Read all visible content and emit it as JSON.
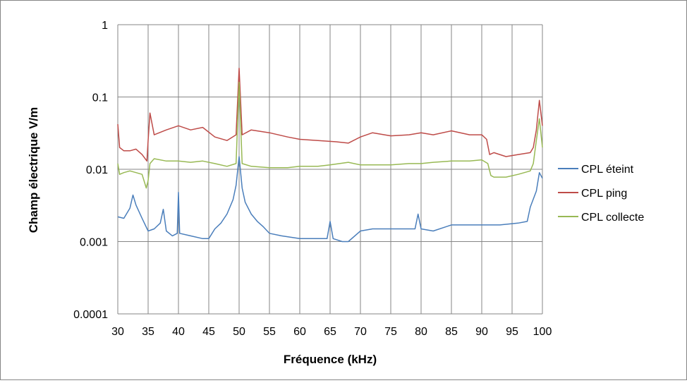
{
  "chart_data": {
    "type": "line",
    "title": "",
    "xlabel": "Fréquence (kHz)",
    "ylabel": "Champ électrique V/m",
    "xlim": [
      30,
      100
    ],
    "ylim": [
      0.0001,
      1
    ],
    "y_scale": "log",
    "x_ticks": [
      "30",
      "35",
      "40",
      "45",
      "50",
      "55",
      "60",
      "65",
      "70",
      "75",
      "80",
      "85",
      "90",
      "95",
      "100"
    ],
    "y_ticks": [
      "1",
      "0.1",
      "0.01",
      "0.001",
      "0.0001"
    ],
    "grid": "vertical and horizontal gridlines",
    "legend_position": "right",
    "series": [
      {
        "name": "CPL éteint",
        "color": "#4a7ebb",
        "points": [
          [
            30,
            0.0022
          ],
          [
            31,
            0.0021
          ],
          [
            32,
            0.0029
          ],
          [
            32.5,
            0.0044
          ],
          [
            33,
            0.0032
          ],
          [
            34,
            0.0021
          ],
          [
            35,
            0.0014
          ],
          [
            36,
            0.0015
          ],
          [
            37,
            0.0018
          ],
          [
            37.5,
            0.0028
          ],
          [
            38,
            0.0014
          ],
          [
            39,
            0.0012
          ],
          [
            39.8,
            0.0013
          ],
          [
            40,
            0.0048
          ],
          [
            40.2,
            0.0013
          ],
          [
            42,
            0.0012
          ],
          [
            44,
            0.0011
          ],
          [
            45,
            0.0011
          ],
          [
            46,
            0.0015
          ],
          [
            47,
            0.0018
          ],
          [
            48,
            0.0024
          ],
          [
            49,
            0.0038
          ],
          [
            49.5,
            0.006
          ],
          [
            50,
            0.015
          ],
          [
            50.5,
            0.0055
          ],
          [
            51,
            0.0035
          ],
          [
            52,
            0.0024
          ],
          [
            53,
            0.0019
          ],
          [
            54,
            0.0016
          ],
          [
            55,
            0.0013
          ],
          [
            57,
            0.0012
          ],
          [
            60,
            0.0011
          ],
          [
            63,
            0.0011
          ],
          [
            64.5,
            0.0011
          ],
          [
            65,
            0.0019
          ],
          [
            65.5,
            0.0011
          ],
          [
            67,
            0.001
          ],
          [
            68,
            0.001
          ],
          [
            70,
            0.0014
          ],
          [
            72,
            0.0015
          ],
          [
            75,
            0.0015
          ],
          [
            78,
            0.0015
          ],
          [
            79,
            0.0015
          ],
          [
            79.5,
            0.0024
          ],
          [
            80,
            0.0015
          ],
          [
            82,
            0.0014
          ],
          [
            85,
            0.0017
          ],
          [
            88,
            0.0017
          ],
          [
            90,
            0.0017
          ],
          [
            93,
            0.0017
          ],
          [
            96,
            0.0018
          ],
          [
            97.5,
            0.0019
          ],
          [
            98,
            0.003
          ],
          [
            99,
            0.005
          ],
          [
            99.5,
            0.009
          ],
          [
            100,
            0.0075
          ]
        ]
      },
      {
        "name": "CPL ping",
        "color": "#be4b48",
        "points": [
          [
            30,
            0.042
          ],
          [
            30.3,
            0.02
          ],
          [
            31,
            0.018
          ],
          [
            32,
            0.018
          ],
          [
            33,
            0.019
          ],
          [
            34,
            0.016
          ],
          [
            34.8,
            0.013
          ],
          [
            35,
            0.025
          ],
          [
            35.3,
            0.06
          ],
          [
            36,
            0.03
          ],
          [
            38,
            0.035
          ],
          [
            40,
            0.04
          ],
          [
            42,
            0.035
          ],
          [
            44,
            0.038
          ],
          [
            46,
            0.028
          ],
          [
            48,
            0.025
          ],
          [
            49.5,
            0.03
          ],
          [
            50,
            0.25
          ],
          [
            50.5,
            0.03
          ],
          [
            52,
            0.035
          ],
          [
            55,
            0.032
          ],
          [
            58,
            0.028
          ],
          [
            60,
            0.026
          ],
          [
            63,
            0.025
          ],
          [
            66,
            0.024
          ],
          [
            68,
            0.023
          ],
          [
            70,
            0.028
          ],
          [
            72,
            0.032
          ],
          [
            75,
            0.029
          ],
          [
            78,
            0.03
          ],
          [
            80,
            0.032
          ],
          [
            82,
            0.03
          ],
          [
            85,
            0.034
          ],
          [
            88,
            0.03
          ],
          [
            90,
            0.03
          ],
          [
            90.8,
            0.026
          ],
          [
            91.3,
            0.016
          ],
          [
            92,
            0.017
          ],
          [
            94,
            0.015
          ],
          [
            96,
            0.016
          ],
          [
            98,
            0.017
          ],
          [
            98.5,
            0.02
          ],
          [
            99,
            0.035
          ],
          [
            99.5,
            0.09
          ],
          [
            100,
            0.04
          ]
        ]
      },
      {
        "name": "CPL collecte",
        "color": "#98b954",
        "points": [
          [
            30,
            0.012
          ],
          [
            30.3,
            0.0085
          ],
          [
            31,
            0.009
          ],
          [
            32,
            0.0095
          ],
          [
            33,
            0.009
          ],
          [
            34,
            0.0085
          ],
          [
            34.7,
            0.0055
          ],
          [
            35,
            0.007
          ],
          [
            35.3,
            0.012
          ],
          [
            36,
            0.014
          ],
          [
            38,
            0.013
          ],
          [
            40,
            0.013
          ],
          [
            42,
            0.0125
          ],
          [
            44,
            0.013
          ],
          [
            46,
            0.012
          ],
          [
            48,
            0.011
          ],
          [
            49.5,
            0.012
          ],
          [
            50,
            0.16
          ],
          [
            50.5,
            0.012
          ],
          [
            52,
            0.011
          ],
          [
            55,
            0.0105
          ],
          [
            58,
            0.0105
          ],
          [
            60,
            0.011
          ],
          [
            63,
            0.011
          ],
          [
            65,
            0.0115
          ],
          [
            68,
            0.0125
          ],
          [
            70,
            0.0115
          ],
          [
            72,
            0.0115
          ],
          [
            75,
            0.0115
          ],
          [
            78,
            0.012
          ],
          [
            80,
            0.012
          ],
          [
            82,
            0.0125
          ],
          [
            85,
            0.013
          ],
          [
            88,
            0.013
          ],
          [
            90,
            0.0135
          ],
          [
            91,
            0.012
          ],
          [
            91.5,
            0.0082
          ],
          [
            92,
            0.0078
          ],
          [
            94,
            0.0078
          ],
          [
            96,
            0.0085
          ],
          [
            98,
            0.0095
          ],
          [
            98.5,
            0.012
          ],
          [
            99,
            0.025
          ],
          [
            99.5,
            0.05
          ],
          [
            100,
            0.02
          ]
        ]
      }
    ]
  }
}
